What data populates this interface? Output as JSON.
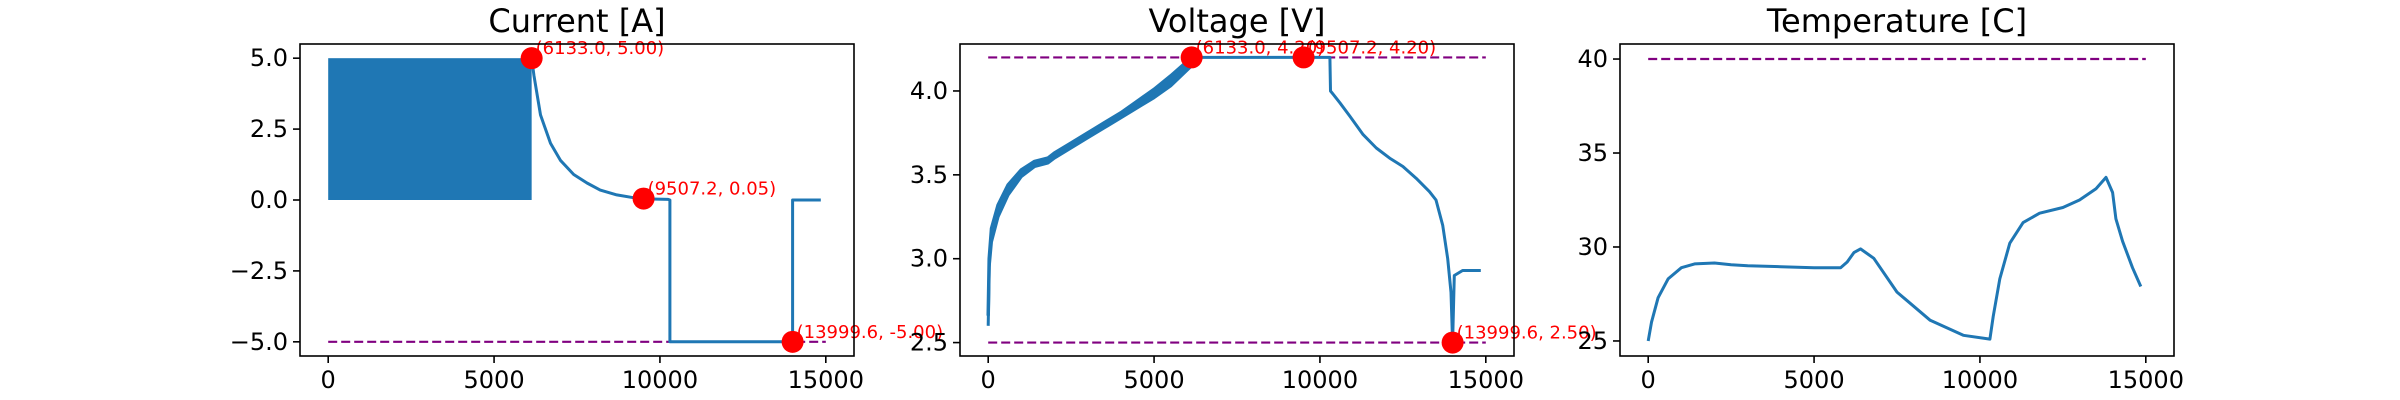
{
  "chart_data": [
    {
      "type": "line",
      "title": "Current [A]",
      "xlabel": "",
      "ylabel": "",
      "xlim": [
        -850,
        15850
      ],
      "ylim": [
        -5.5,
        5.5
      ],
      "xticks": [
        0,
        5000,
        10000,
        15000
      ],
      "xtick_labels": [
        "0",
        "5000",
        "10000",
        "15000"
      ],
      "yticks": [
        -5.0,
        -2.5,
        0.0,
        2.5,
        5.0
      ],
      "ytick_labels": [
        "−5.0",
        "−2.5",
        "0.0",
        "2.5",
        "5.0"
      ],
      "grid": false,
      "line_color": "#1f77b4",
      "limit_color": "#800080",
      "marker_color": "#ff0000",
      "limit_lines": [
        -5.0
      ],
      "band": {
        "x_start": 0,
        "x_end": 6133,
        "y_low": 0.0,
        "y_high": 5.0,
        "description_values": "pulse charge oscillation 0 to 5 A"
      },
      "series": [
        {
          "x": [
            6133,
            6200,
            6400,
            6700,
            7000,
            7400,
            7800,
            8200,
            8700,
            9200,
            9507,
            9900,
            10250,
            10300,
            10300,
            10500,
            11000,
            12000,
            13000,
            13999.6,
            13999.6,
            14100,
            14400,
            14800,
            14850
          ],
          "y": [
            5.0,
            4.4,
            3.0,
            2.0,
            1.4,
            0.9,
            0.6,
            0.35,
            0.18,
            0.08,
            0.05,
            0.03,
            0.02,
            0.0,
            -5.0,
            -5.0,
            -5.0,
            -5.0,
            -5.0,
            -5.0,
            0.0,
            0.0,
            0.0,
            0.0,
            0.0
          ]
        }
      ],
      "markers": [
        {
          "x": 6133.0,
          "y": 5.0,
          "label": "(6133.0, 5.00)"
        },
        {
          "x": 9507.2,
          "y": 0.05,
          "label": "(9507.2, 0.05)"
        },
        {
          "x": 13999.6,
          "y": -5.0,
          "label": "(13999.6, -5.00)"
        }
      ]
    },
    {
      "type": "line",
      "title": "Voltage [V]",
      "xlabel": "",
      "ylabel": "",
      "xlim": [
        -850,
        15850
      ],
      "ylim": [
        2.42,
        4.28
      ],
      "xticks": [
        0,
        5000,
        10000,
        15000
      ],
      "xtick_labels": [
        "0",
        "5000",
        "10000",
        "15000"
      ],
      "yticks": [
        2.5,
        3.0,
        3.5,
        4.0
      ],
      "ytick_labels": [
        "2.5",
        "3.0",
        "3.5",
        "4.0"
      ],
      "grid": false,
      "line_color": "#1f77b4",
      "limit_color": "#800080",
      "marker_color": "#ff0000",
      "limit_lines": [
        2.5,
        4.2
      ],
      "series": [
        {
          "x": [
            0,
            30,
            100,
            300,
            600,
            1000,
            1400,
            1800,
            2000,
            2500,
            3000,
            3500,
            4000,
            4500,
            5000,
            5500,
            6133,
            6133,
            9507,
            10300,
            10320,
            10400,
            10600,
            10900,
            11300,
            11700,
            12100,
            12500,
            12900,
            13300,
            13500,
            13700,
            13850,
            13950,
            13999.6,
            14050,
            14300,
            14850
          ],
          "y": [
            2.6,
            2.95,
            3.1,
            3.25,
            3.38,
            3.49,
            3.55,
            3.57,
            3.6,
            3.66,
            3.72,
            3.78,
            3.84,
            3.9,
            3.96,
            4.03,
            4.15,
            4.2,
            4.2,
            4.2,
            4.0,
            3.98,
            3.93,
            3.85,
            3.74,
            3.66,
            3.6,
            3.55,
            3.48,
            3.4,
            3.35,
            3.2,
            3.0,
            2.8,
            2.5,
            2.9,
            2.93,
            2.93
          ]
        },
        {
          "x": [
            0,
            30,
            100,
            300,
            600,
            1000,
            1400,
            1800,
            2000,
            2500,
            3000,
            3500,
            4000,
            4500,
            5000,
            5500,
            6133
          ],
          "y": [
            2.66,
            3.0,
            3.18,
            3.32,
            3.44,
            3.53,
            3.58,
            3.6,
            3.63,
            3.69,
            3.75,
            3.81,
            3.87,
            3.94,
            4.01,
            4.09,
            4.2
          ]
        }
      ],
      "markers": [
        {
          "x": 6133.0,
          "y": 4.2,
          "label": "(6133.0, 4.20)"
        },
        {
          "x": 9507.2,
          "y": 4.2,
          "label": "(9507.2, 4.20)"
        },
        {
          "x": 13999.6,
          "y": 2.5,
          "label": "(13999.6, 2.50)"
        }
      ]
    },
    {
      "type": "line",
      "title": "Temperature [C]",
      "xlabel": "",
      "ylabel": "",
      "xlim": [
        -850,
        15850
      ],
      "ylim": [
        24.2,
        40.8
      ],
      "xticks": [
        0,
        5000,
        10000,
        15000
      ],
      "xtick_labels": [
        "0",
        "5000",
        "10000",
        "15000"
      ],
      "yticks": [
        25,
        30,
        35,
        40
      ],
      "ytick_labels": [
        "25",
        "30",
        "35",
        "40"
      ],
      "grid": false,
      "line_color": "#1f77b4",
      "limit_color": "#800080",
      "marker_color": "#ff0000",
      "limit_lines": [
        40
      ],
      "series": [
        {
          "x": [
            0,
            100,
            300,
            600,
            1000,
            1400,
            2000,
            2500,
            3000,
            4000,
            5000,
            5800,
            6000,
            6200,
            6400,
            6800,
            7500,
            8500,
            9500,
            10300,
            10400,
            10600,
            10900,
            11300,
            11800,
            12500,
            13000,
            13500,
            13800,
            14000,
            14100,
            14300,
            14600,
            14850
          ],
          "y": [
            25.0,
            26.0,
            27.3,
            28.3,
            28.9,
            29.1,
            29.15,
            29.05,
            29.0,
            28.95,
            28.9,
            28.9,
            29.2,
            29.7,
            29.9,
            29.4,
            27.6,
            26.1,
            25.3,
            25.1,
            26.3,
            28.3,
            30.2,
            31.3,
            31.8,
            32.1,
            32.5,
            33.1,
            33.7,
            32.9,
            31.5,
            30.3,
            28.9,
            27.9
          ]
        }
      ],
      "markers": []
    }
  ]
}
